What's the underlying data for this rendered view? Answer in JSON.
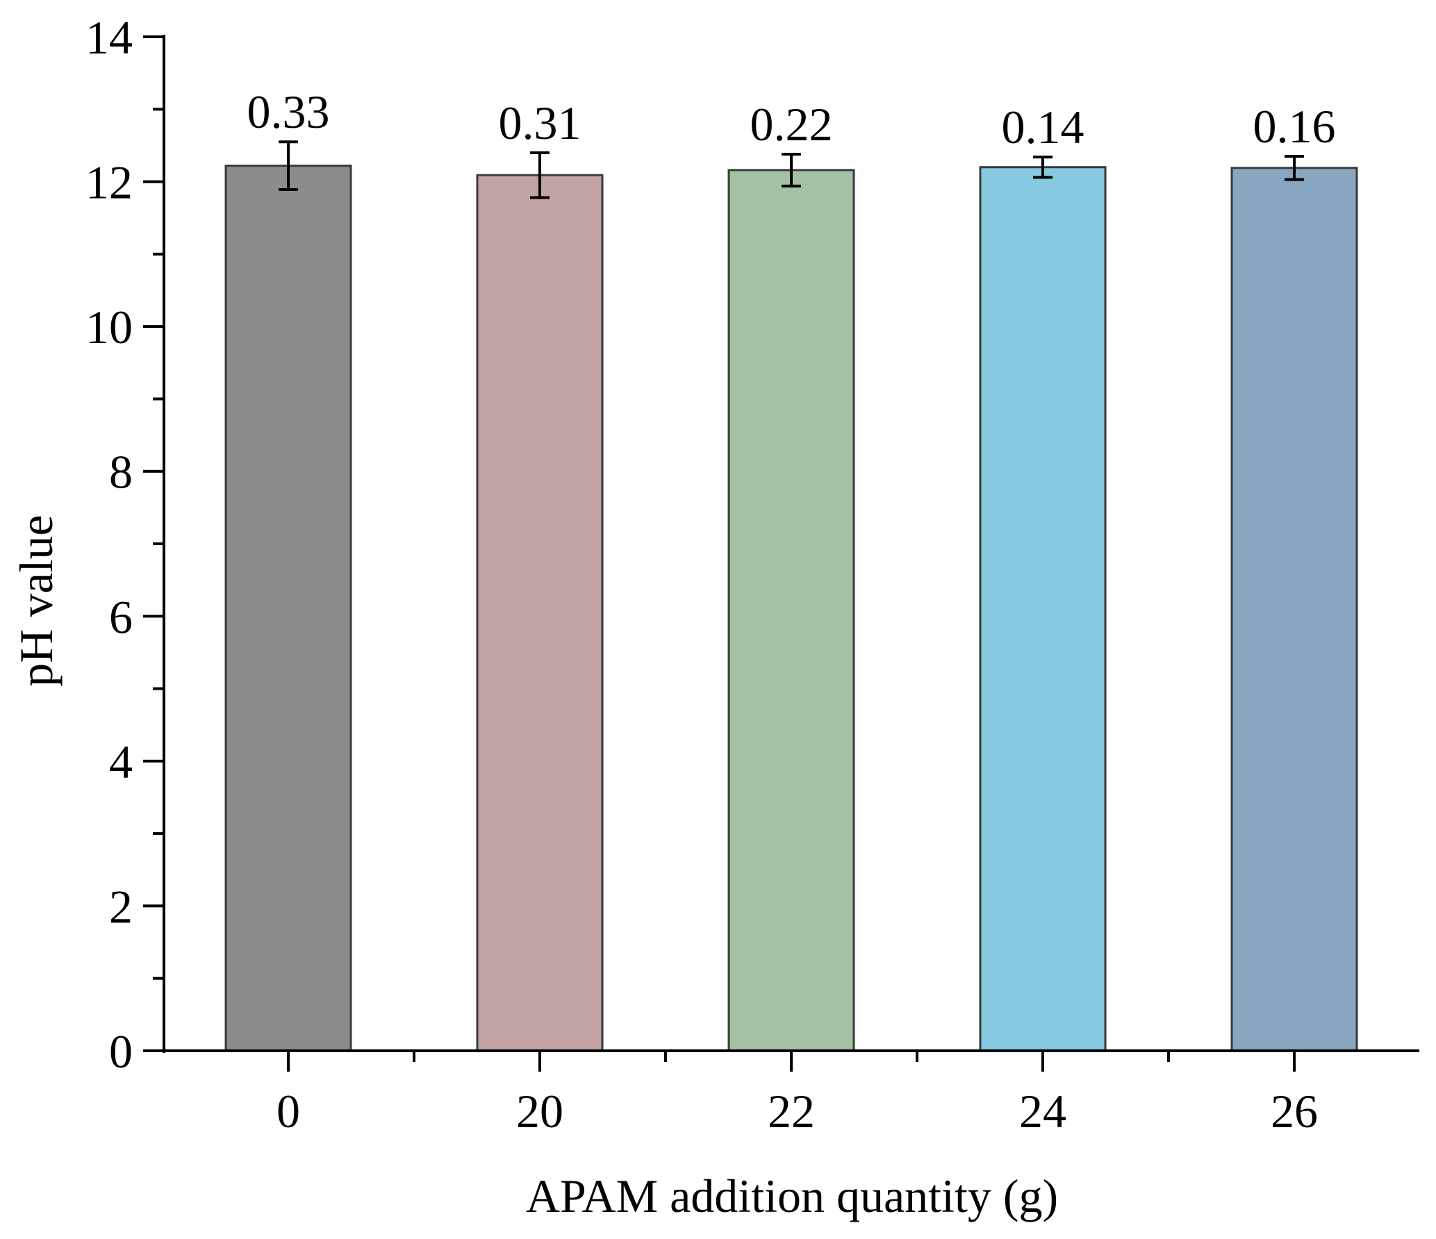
{
  "chart_data": {
    "type": "bar",
    "title": "",
    "xlabel": "APAM addition quantity (g)",
    "ylabel": "pH value",
    "categories": [
      "0",
      "20",
      "22",
      "24",
      "26"
    ],
    "values": [
      12.22,
      12.09,
      12.16,
      12.2,
      12.19
    ],
    "errors": [
      0.33,
      0.31,
      0.22,
      0.14,
      0.16
    ],
    "data_labels": [
      "0.33",
      "0.31",
      "0.22",
      "0.14",
      "0.16"
    ],
    "colors": [
      "#8c8c8c",
      "#c2a4a5",
      "#a5c1a3",
      "#86c9e0",
      "#88a6c0"
    ],
    "ylim": [
      0,
      14
    ],
    "yticks": [
      "0",
      "2",
      "4",
      "6",
      "8",
      "10",
      "12",
      "14"
    ],
    "grid": false,
    "legend": "none"
  }
}
